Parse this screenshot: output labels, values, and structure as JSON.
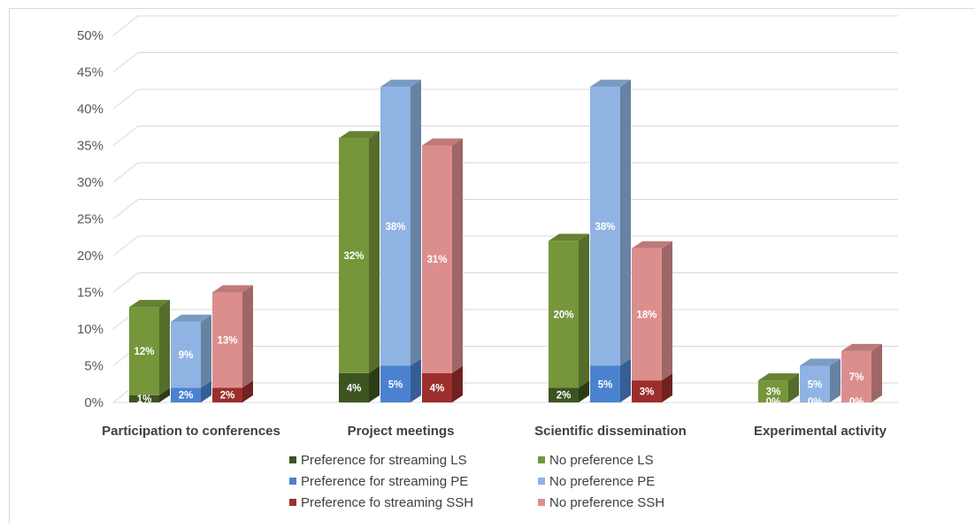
{
  "chart_data": {
    "type": "bar",
    "stacked": true,
    "three_d": true,
    "categories": [
      "Participation to conferences",
      "Project meetings",
      "Scientific dissemination",
      "Experimental activity"
    ],
    "ylim": [
      0,
      50
    ],
    "yticks": [
      "0%",
      "5%",
      "10%",
      "15%",
      "20%",
      "25%",
      "30%",
      "35%",
      "40%",
      "45%",
      "50%"
    ],
    "grid": true,
    "legend_position": "bottom",
    "groups": [
      {
        "name": "LS",
        "lower": {
          "name": "Preference for streaming LS",
          "color": "#3d5420",
          "values": [
            1,
            4,
            2,
            0
          ],
          "labels": [
            "1%",
            "4%",
            "2%",
            "0%"
          ]
        },
        "upper": {
          "name": "No preference LS",
          "color": "#76963b",
          "values": [
            12,
            32,
            20,
            3
          ],
          "labels": [
            "12%",
            "32%",
            "20%",
            "3%"
          ]
        }
      },
      {
        "name": "PE",
        "lower": {
          "name": "Preference for streaming PE",
          "color": "#4b82cf",
          "values": [
            2,
            5,
            5,
            0
          ],
          "labels": [
            "2%",
            "5%",
            "5%",
            "0%"
          ]
        },
        "upper": {
          "name": "No preference PE",
          "color": "#8fb4e3",
          "values": [
            9,
            38,
            38,
            5
          ],
          "labels": [
            "9%",
            "38%",
            "38%",
            "5%"
          ]
        }
      },
      {
        "name": "SSH",
        "lower": {
          "name": "Preference fo streaming SSH",
          "color": "#9b2f2d",
          "values": [
            2,
            4,
            3,
            0
          ],
          "labels": [
            "2%",
            "4%",
            "3%",
            "0%"
          ]
        },
        "upper": {
          "name": "No preference SSH",
          "color": "#dc8e8d",
          "values": [
            13,
            31,
            18,
            7
          ],
          "labels": [
            "13%",
            "31%",
            "18%",
            "7%"
          ]
        }
      }
    ],
    "legend": [
      {
        "label": "Preference for streaming LS",
        "color": "#3d5420"
      },
      {
        "label": "No preference LS",
        "color": "#76963b"
      },
      {
        "label": "Preference for streaming PE",
        "color": "#4b82cf"
      },
      {
        "label": "No preference PE",
        "color": "#8fb4e3"
      },
      {
        "label": "Preference fo streaming SSH",
        "color": "#9b2f2d"
      },
      {
        "label": "No preference SSH",
        "color": "#dc8e8d"
      }
    ]
  }
}
